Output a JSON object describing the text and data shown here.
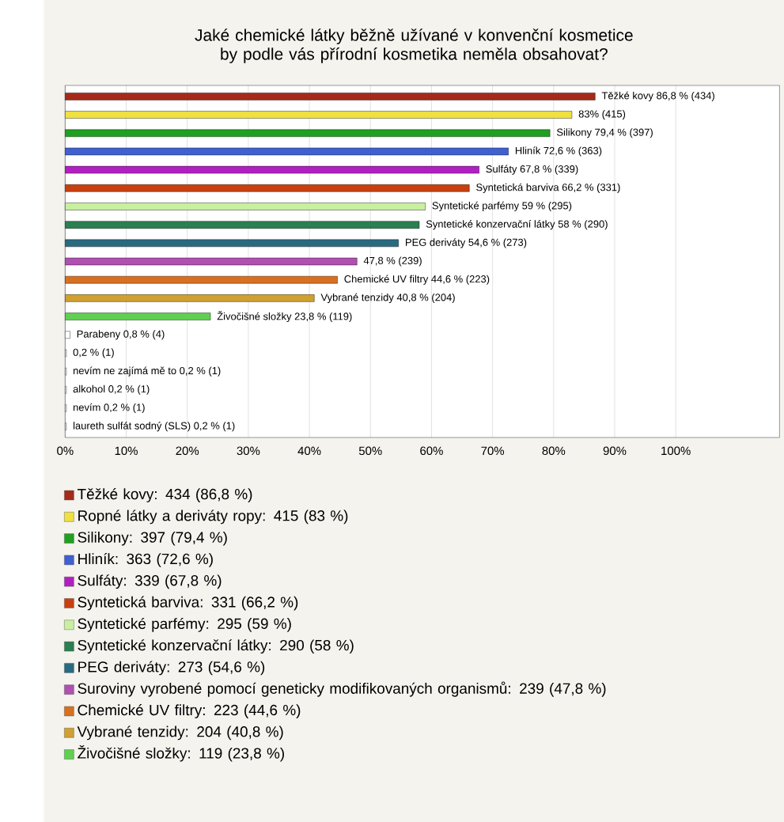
{
  "chart_data": {
    "type": "bar",
    "orientation": "horizontal",
    "title": "Jaké chemické látky běžně užívané v konvenční kosmetice by podle vás přírodní kosmetika neměla obsahovat?",
    "categories": [
      null,
      null,
      null,
      null,
      null,
      null,
      null,
      null,
      null,
      null,
      null,
      null,
      null,
      null,
      null,
      null,
      null,
      null,
      null
    ],
    "values": [
      86.8,
      83,
      79.4,
      72.6,
      67.8,
      66.2,
      59,
      58,
      54.6,
      47.8,
      44.6,
      40.8,
      23.8,
      0.8,
      0.2,
      0.2,
      0.2,
      0.2,
      0.2
    ],
    "colors": [
      "#a52a1a",
      "#f0e040",
      "#20a020",
      "#4060d0",
      "#b020c0",
      "#c84010",
      "#c8f0a0",
      "#2a8050",
      "#2a6a80",
      "#b050b0",
      "#d87020",
      "#d0a030",
      "#60d050",
      "#ffffff",
      "#ffffff",
      "#ffffff",
      "#ffffff",
      "#ffffff",
      "#ffffff"
    ],
    "value_labels": [
      "Těžké kovy 86,8 % (434)",
      "83% (415)",
      "Silikony 79,4 % (397)",
      "Hliník 72,6 % (363)",
      "Sulfáty 67,8 % (339)",
      "Syntetická barviva 66,2 % (331)",
      "Syntetické parfémy 59 % (295)",
      "Syntetické konzervační látky 58 % (290)",
      "PEG deriváty 54,6 % (273)",
      "47,8 % (239)",
      "Chemické UV filtry 44,6 % (223)",
      "Vybrané tenzidy 40,8 % (204)",
      "Živočišné složky 23,8 % (119)",
      "Parabeny 0,8 % (4)",
      "0,2 % (1)",
      "nevím ne zajímá mě to 0,2 % (1)",
      "alkohol 0,2 % (1)",
      "nevím 0,2 % (1)",
      "laureth sulfát sodný (SLS) 0,2 % (1)"
    ],
    "xlim": [
      0,
      117
    ],
    "xticks": [
      {
        "value": 0,
        "label": "0%"
      },
      {
        "value": 10,
        "label": "10%"
      },
      {
        "value": 20,
        "label": "20%"
      },
      {
        "value": 30,
        "label": "30%"
      },
      {
        "value": 40,
        "label": "40%"
      },
      {
        "value": 50,
        "label": "50%"
      },
      {
        "value": 60,
        "label": "60%"
      },
      {
        "value": 70,
        "label": "70%"
      },
      {
        "value": 80,
        "label": "80%"
      },
      {
        "value": 90,
        "label": "90%"
      },
      {
        "value": 100,
        "label": "100%"
      }
    ],
    "grid": "x",
    "annotations": [
      "Těžké kovy: 434 (86,8 %)",
      "Ropné látky a deriváty ropy: 415 (83 %)",
      "Silikony: 397 (79,4 %)",
      "Hliník: 363 (72,6 %)",
      "Sulfáty: 339 (67,8 %)",
      "Syntetická barviva: 331 (66,2 %)",
      "Syntetické parfémy: 295 (59 %)",
      "Syntetické konzervační látky: 290 (58 %)",
      "PEG deriváty: 273 (54,6 %)",
      "Suroviny vyrobené pomocí geneticky modifikovaných organismů: 239 (47,8 %)",
      "Chemické UV filtry: 223 (44,6 %)",
      "Vybrané tenzidy: 204 (40,8 %)",
      "Živočišné složky: 119 (23,8 %)"
    ]
  }
}
